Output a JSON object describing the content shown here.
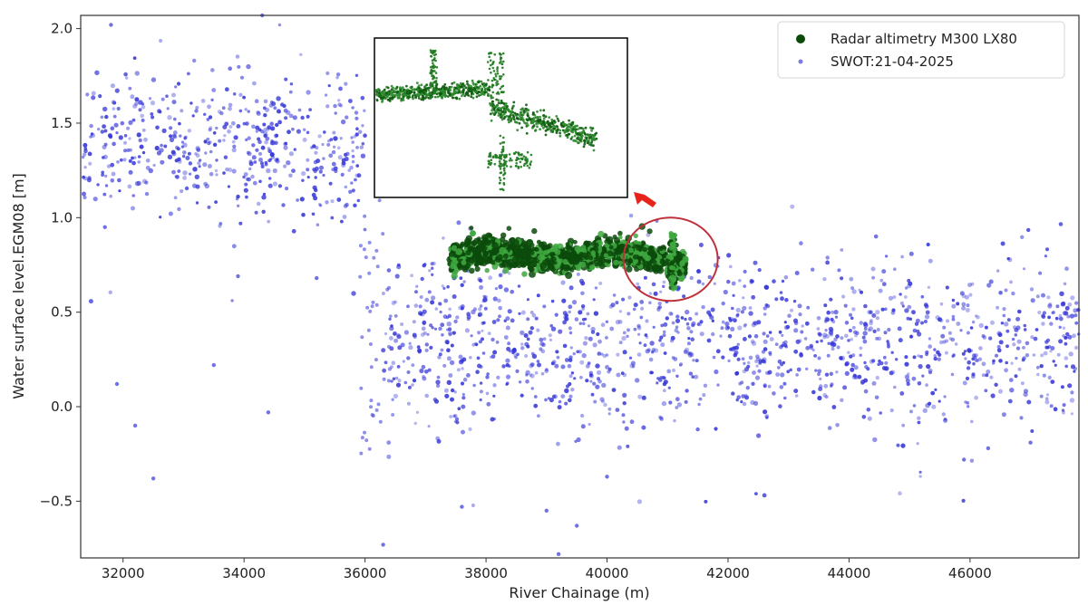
{
  "chart_data": {
    "type": "scatter",
    "xlabel": "River Chainage (m)",
    "ylabel": "Water surface level.EGM08 [m]",
    "xlim": [
      31300,
      47800
    ],
    "ylim": [
      -0.8,
      2.07
    ],
    "xticks": [
      32000,
      34000,
      36000,
      38000,
      40000,
      42000,
      44000,
      46000
    ],
    "xtick_labels": [
      "32000",
      "34000",
      "36000",
      "38000",
      "40000",
      "42000",
      "44000",
      "46000"
    ],
    "yticks": [
      -0.5,
      0.0,
      0.5,
      1.0,
      1.5,
      2.0
    ],
    "ytick_labels": [
      "−0.5",
      "0.0",
      "0.5",
      "1.0",
      "1.5",
      "2.0"
    ],
    "grid": false,
    "legend_placement": "top-right",
    "series": [
      {
        "name": "Radar altimetry M300 LX80",
        "color": "#0a3d0a",
        "marker": "large dot",
        "description_points": [
          [
            37400,
            0.82
          ],
          [
            37800,
            0.8
          ],
          [
            38200,
            0.78
          ],
          [
            38600,
            0.79
          ],
          [
            39000,
            0.8
          ],
          [
            39400,
            0.8
          ],
          [
            39800,
            0.81
          ],
          [
            40200,
            0.81
          ],
          [
            40600,
            0.82
          ],
          [
            40900,
            0.84
          ],
          [
            41100,
            0.7
          ],
          [
            41300,
            0.73
          ]
        ]
      },
      {
        "name": "SWOT:21-04-2025",
        "color": "#3b3bdc",
        "marker": "small dot",
        "segments": [
          {
            "x_range": [
              31300,
              36000
            ],
            "y_mean": 1.38,
            "y_spread": 0.18
          },
          {
            "x_range": [
              36300,
              41000
            ],
            "y_mean": 0.33,
            "y_spread": 0.22
          },
          {
            "x_range": [
              41000,
              47800
            ],
            "y_mean": 0.35,
            "y_spread": 0.2
          }
        ]
      }
    ],
    "annotations": [
      {
        "type": "inset",
        "description": "zoomed view of radar altimetry track near river step"
      },
      {
        "type": "circle",
        "center": [
          41050,
          0.78
        ]
      },
      {
        "type": "arrow",
        "from": [
          40750,
          1.0
        ],
        "to": [
          40450,
          1.12
        ]
      }
    ]
  },
  "colors": {
    "radar": "#0b4a0b",
    "radar_light": "#3fa83f",
    "swot": "#3535d8",
    "circle": "#c0303a",
    "arrow": "#e8231b"
  }
}
